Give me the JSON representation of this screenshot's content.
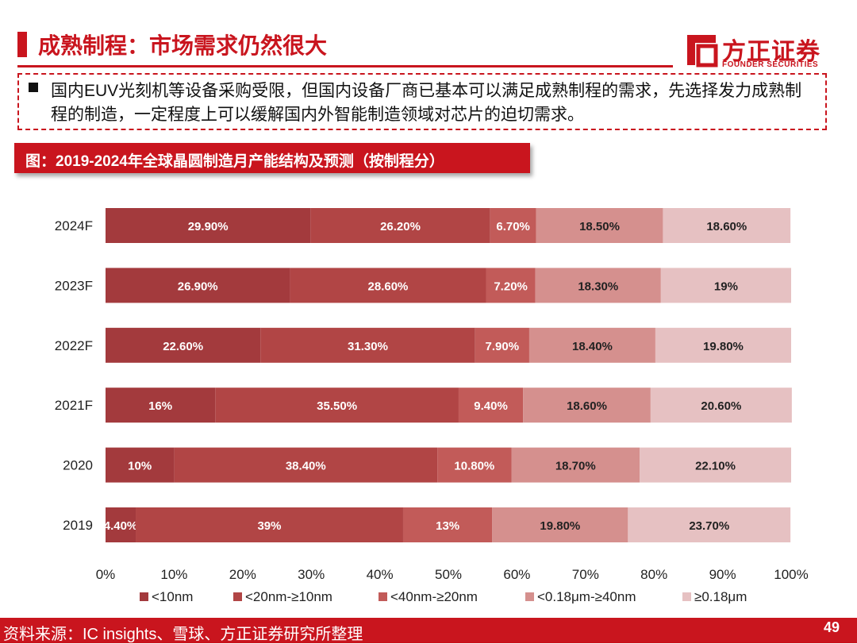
{
  "header": {
    "title": "成熟制程：市场需求仍然很大"
  },
  "logo": {
    "name": "方正证券",
    "subtitle": "FOUNDER SECURITIES"
  },
  "bullet": {
    "text": "国内EUV光刻机等设备采购受限，但国内设备厂商已基本可以满足成熟制程的需求，先选择发力成熟制程的制造，一定程度上可以缓解国内外智能制造领域对芯片的迫切需求。"
  },
  "figure": {
    "title": "图：2019-2024年全球晶圆制造月产能结构及预测（按制程分）"
  },
  "chart_data": {
    "type": "bar",
    "orientation": "horizontal",
    "stacked": true,
    "categories": [
      "2024F",
      "2023F",
      "2022F",
      "2021F",
      "2020",
      "2019"
    ],
    "series": [
      {
        "name": "<10nm",
        "color": "#a33a3d",
        "values": [
          29.9,
          26.9,
          22.6,
          16,
          10,
          4.4
        ],
        "labels": [
          "29.90%",
          "26.90%",
          "22.60%",
          "16%",
          "10%",
          "4.40%"
        ]
      },
      {
        "name": "<20nm-≥10nm",
        "color": "#b14545",
        "values": [
          26.2,
          28.6,
          31.3,
          35.5,
          38.4,
          39
        ],
        "labels": [
          "26.20%",
          "28.60%",
          "31.30%",
          "35.50%",
          "38.40%",
          "39%"
        ]
      },
      {
        "name": "<40nm-≥20nm",
        "color": "#c25b59",
        "values": [
          6.7,
          7.2,
          7.9,
          9.4,
          10.8,
          13
        ],
        "labels": [
          "6.70%",
          "7.20%",
          "7.90%",
          "9.40%",
          "10.80%",
          "13%"
        ]
      },
      {
        "name": "<0.18μm-≥40nm",
        "color": "#d5908e",
        "values": [
          18.5,
          18.3,
          18.4,
          18.6,
          18.7,
          19.8
        ],
        "labels": [
          "18.50%",
          "18.30%",
          "18.40%",
          "18.60%",
          "18.70%",
          "19.80%"
        ]
      },
      {
        "name": "≥0.18μm",
        "color": "#e6c1c2",
        "values": [
          18.6,
          19,
          19.8,
          20.6,
          22.1,
          23.7
        ],
        "labels": [
          "18.60%",
          "19%",
          "19.80%",
          "20.60%",
          "22.10%",
          "23.70%"
        ]
      }
    ],
    "xlim": [
      0,
      100
    ],
    "xticks": [
      "0%",
      "10%",
      "20%",
      "30%",
      "40%",
      "50%",
      "60%",
      "70%",
      "80%",
      "90%",
      "100%"
    ],
    "legend_position": "bottom",
    "grid": false
  },
  "footer": {
    "source": "资料来源：IC insights、雪球、方正证券研究所整理",
    "page": "49"
  }
}
